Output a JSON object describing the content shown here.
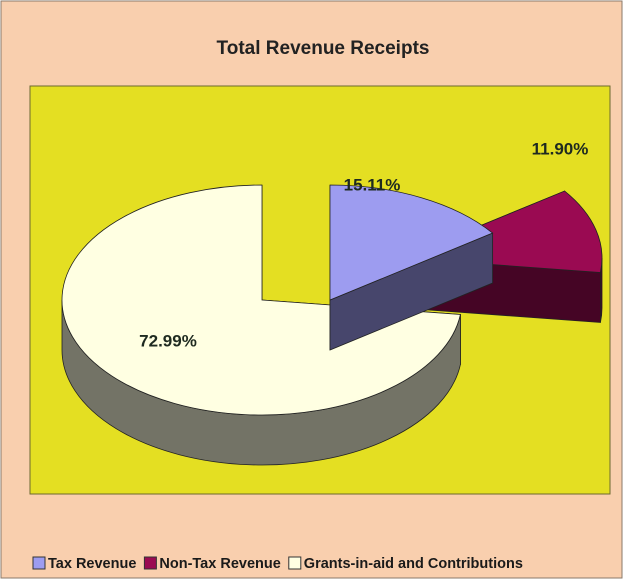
{
  "chart_data": {
    "type": "pie",
    "title": "Total Revenue Receipts",
    "categories": [
      "Tax Revenue",
      "Non-Tax Revenue",
      "Grants-in-aid and Contributions"
    ],
    "values": [
      15.11,
      11.9,
      72.99
    ],
    "value_labels": [
      "15.11%",
      "11.90%",
      "72.99%"
    ],
    "colors": [
      "#9d9cf0",
      "#9a0a52",
      "#ffffe2"
    ],
    "legend": "bottom"
  }
}
